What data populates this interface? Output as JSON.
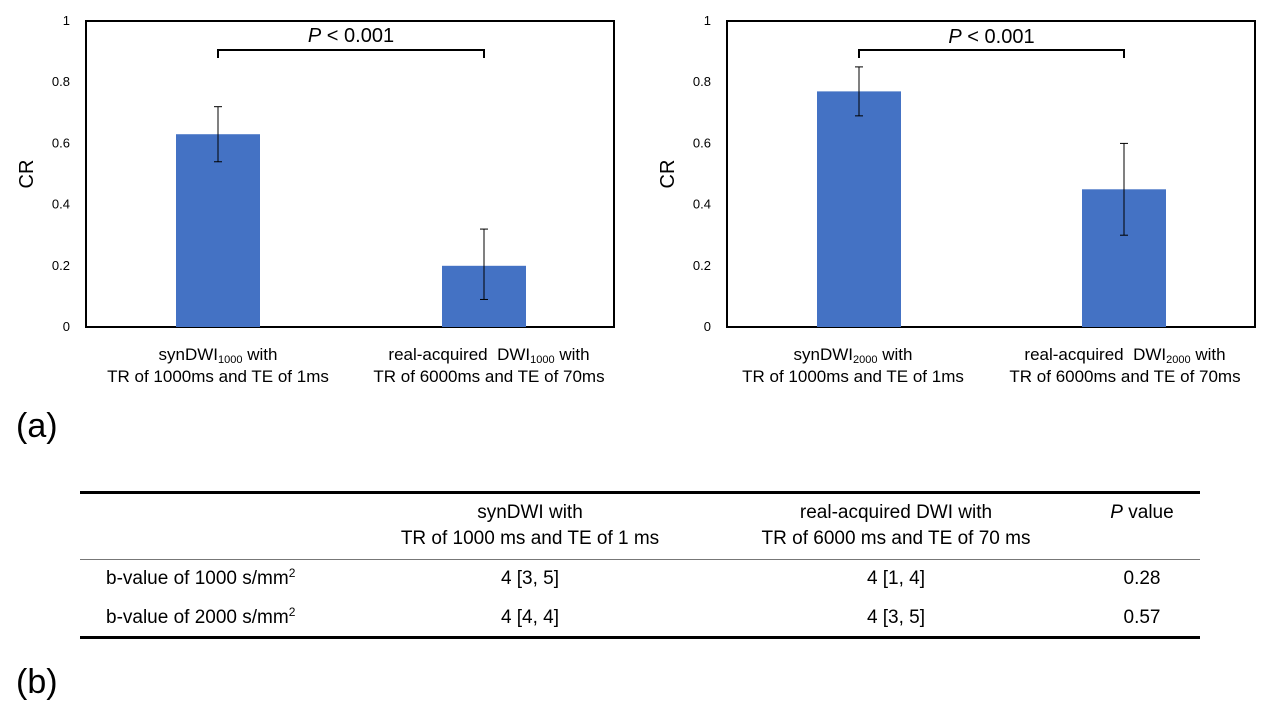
{
  "chart_data": [
    {
      "type": "bar",
      "panel": "(a)",
      "ylabel": "CR",
      "ylim": [
        0,
        1
      ],
      "yticks": [
        "0",
        "0.2",
        "0.4",
        "0.6",
        "0.8",
        "1"
      ],
      "categories": [
        {
          "name": "synDWI",
          "sub": "1000",
          "suffix": " with",
          "line2": "TR of 1000ms and TE of 1ms"
        },
        {
          "name": "real-acquired  DWI",
          "sub": "1000",
          "suffix": " with",
          "line2": "TR of 6000ms and TE of 70ms"
        }
      ],
      "values": [
        0.63,
        0.2
      ],
      "error_low": [
        0.54,
        0.09
      ],
      "error_high": [
        0.72,
        0.32
      ],
      "annotation": {
        "italic": "P",
        "text": " < 0.001"
      },
      "bar_color": "#4472C4"
    },
    {
      "type": "bar",
      "panel": "(a)",
      "ylabel": "CR",
      "ylim": [
        0,
        1
      ],
      "yticks": [
        "0",
        "0.2",
        "0.4",
        "0.6",
        "0.8",
        "1"
      ],
      "categories": [
        {
          "name": "synDWI",
          "sub": "2000",
          "suffix": " with",
          "line2": "TR of 1000ms and TE of 1ms"
        },
        {
          "name": "real-acquired  DWI",
          "sub": "2000",
          "suffix": " with",
          "line2": "TR of 6000ms and TE of 70ms"
        }
      ],
      "values": [
        0.77,
        0.45
      ],
      "error_low": [
        0.69,
        0.3
      ],
      "error_high": [
        0.85,
        0.6
      ],
      "annotation": {
        "italic": "P",
        "text": " < 0.001"
      },
      "bar_color": "#4472C4"
    }
  ],
  "labels": {
    "a": "(a)",
    "b": "(b)"
  },
  "table": {
    "header": {
      "col1_line1": "synDWI with",
      "col1_line2": "TR of 1000 ms and TE of 1 ms",
      "col2_line1": "real-acquired DWI with",
      "col2_line2": "TR of 6000 ms and TE of 70 ms",
      "col3_italic": "P",
      "col3_text": " value"
    },
    "rows": [
      {
        "label": "b-value of 1000 s/mm",
        "sup": "2",
        "syn": "4 [3, 5]",
        "real": "4 [1, 4]",
        "p": "0.28"
      },
      {
        "label": "b-value of 2000 s/mm",
        "sup": "2",
        "syn": "4 [4, 4]",
        "real": "4 [3, 5]",
        "p": "0.57"
      }
    ]
  }
}
